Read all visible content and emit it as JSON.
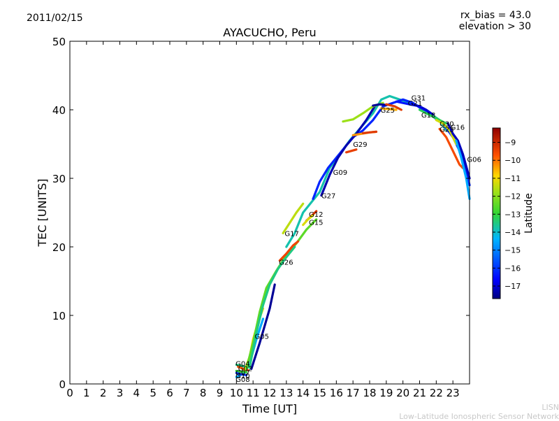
{
  "header": {
    "date": "2011/02/15",
    "rx_bias": "rx_bias = 43.0",
    "elevation": "elevation > 30"
  },
  "credit": {
    "line1": "LISN",
    "line2": "Low-Latitude Ionospheric Sensor Network"
  },
  "colorbar": {
    "label": "Latitude",
    "min": -17.7,
    "max": -8.2,
    "ticks": [
      -9,
      -10,
      -11,
      -12,
      -13,
      -14,
      -15,
      -16,
      -17
    ],
    "tick_labels": [
      "−9",
      "−10",
      "−11",
      "−12",
      "−13",
      "−14",
      "−15",
      "−16",
      "−17"
    ],
    "colormap": "jet"
  },
  "chart_data": {
    "type": "line",
    "title": "AYACUCHO, Peru",
    "xlabel": "Time [UT]",
    "ylabel": "TEC [UNITS]",
    "xlim": [
      0,
      24
    ],
    "ylim": [
      0,
      50
    ],
    "xticks": [
      0,
      1,
      2,
      3,
      4,
      5,
      6,
      7,
      8,
      9,
      10,
      11,
      12,
      13,
      14,
      15,
      16,
      17,
      18,
      19,
      20,
      21,
      22,
      23
    ],
    "yticks": [
      0,
      10,
      20,
      30,
      40,
      50
    ],
    "grid": false,
    "color_by": "Latitude",
    "series": [
      {
        "name": "G08",
        "lat": -14.5,
        "points": [
          [
            10.0,
            1.0
          ],
          [
            10.4,
            1.5
          ],
          [
            10.8,
            3.0
          ],
          [
            11.2,
            6.5
          ],
          [
            11.6,
            9.5
          ]
        ]
      },
      {
        "name": "G04",
        "lat": -13.5,
        "points": [
          [
            10.0,
            2.8
          ],
          [
            10.4,
            2.6
          ],
          [
            10.8,
            2.4
          ]
        ]
      },
      {
        "name": "G02",
        "lat": -9.8,
        "points": [
          [
            10.1,
            2.5
          ],
          [
            10.4,
            2.2
          ],
          [
            10.7,
            2.0
          ]
        ]
      },
      {
        "name": "G07",
        "lat": -13.0,
        "points": [
          [
            10.0,
            1.9
          ],
          [
            10.3,
            1.8
          ],
          [
            10.6,
            1.7
          ]
        ]
      },
      {
        "name": "G10",
        "lat": -16.0,
        "points": [
          [
            10.0,
            1.6
          ],
          [
            10.3,
            1.4
          ],
          [
            10.6,
            1.3
          ]
        ]
      },
      {
        "name": "G05",
        "lat": -11.0,
        "points": [
          [
            10.5,
            2.0
          ],
          [
            10.8,
            4.0
          ],
          [
            11.0,
            6.5
          ],
          [
            11.3,
            9.0
          ],
          [
            11.6,
            11.0
          ]
        ]
      },
      {
        "name": "",
        "lat": -12.5,
        "points": [
          [
            10.6,
            2.2
          ],
          [
            11.0,
            6.0
          ],
          [
            11.4,
            10.5
          ],
          [
            11.8,
            14.0
          ],
          [
            12.4,
            16.5
          ],
          [
            13.0,
            18.8
          ],
          [
            13.6,
            20.5
          ],
          [
            14.2,
            22.5
          ],
          [
            14.8,
            24.0
          ]
        ]
      },
      {
        "name": "",
        "lat": -13.5,
        "points": [
          [
            10.8,
            2.5
          ],
          [
            11.2,
            7.5
          ],
          [
            11.6,
            11.5
          ],
          [
            12.0,
            14.5
          ],
          [
            12.5,
            16.8
          ],
          [
            13.0,
            18.5
          ],
          [
            13.5,
            20.0
          ]
        ]
      },
      {
        "name": "",
        "lat": -17.5,
        "points": [
          [
            10.9,
            2.2
          ],
          [
            11.4,
            6.0
          ],
          [
            12.0,
            11.0
          ],
          [
            12.3,
            14.5
          ]
        ]
      },
      {
        "name": "G26",
        "lat": -9.5,
        "points": [
          [
            12.6,
            18.0
          ],
          [
            13.0,
            19.0
          ],
          [
            13.4,
            20.2
          ],
          [
            13.7,
            20.8
          ]
        ]
      },
      {
        "name": "G17",
        "lat": -11.5,
        "points": [
          [
            12.8,
            22.0
          ],
          [
            13.2,
            23.5
          ],
          [
            13.6,
            25.0
          ],
          [
            14.0,
            26.3
          ]
        ]
      },
      {
        "name": "",
        "lat": -13.8,
        "points": [
          [
            13.0,
            20.0
          ],
          [
            13.5,
            22.0
          ],
          [
            14.0,
            25.0
          ],
          [
            14.5,
            26.5
          ],
          [
            15.0,
            28.0
          ],
          [
            15.6,
            31.5
          ],
          [
            16.2,
            33.5
          ],
          [
            16.8,
            35.5
          ],
          [
            17.5,
            37.5
          ],
          [
            18.2,
            39.5
          ],
          [
            18.7,
            41.5
          ],
          [
            19.2,
            42.0
          ],
          [
            19.8,
            41.5
          ],
          [
            20.4,
            41.0
          ],
          [
            21.0,
            40.5
          ],
          [
            21.6,
            39.5
          ],
          [
            22.2,
            38.5
          ],
          [
            22.6,
            37.0
          ]
        ]
      },
      {
        "name": "G12",
        "lat": -9.2,
        "points": [
          [
            14.2,
            23.8
          ],
          [
            14.5,
            24.5
          ],
          [
            14.8,
            25.2
          ]
        ]
      },
      {
        "name": "G15",
        "lat": -11.2,
        "points": [
          [
            14.0,
            23.2
          ],
          [
            14.3,
            24.0
          ],
          [
            14.6,
            24.6
          ]
        ]
      },
      {
        "name": "G27",
        "lat": -16.2,
        "points": [
          [
            14.6,
            27.0
          ],
          [
            15.0,
            29.5
          ],
          [
            15.5,
            31.5
          ],
          [
            16.0,
            33.0
          ],
          [
            16.5,
            34.5
          ],
          [
            17.0,
            36.0
          ],
          [
            17.6,
            37.0
          ],
          [
            18.2,
            38.5
          ],
          [
            18.8,
            40.5
          ],
          [
            19.4,
            41.0
          ],
          [
            20.0,
            41.5
          ],
          [
            20.6,
            41.0
          ],
          [
            21.2,
            40.0
          ],
          [
            21.8,
            39.0
          ],
          [
            22.4,
            38.0
          ],
          [
            23.0,
            36.0
          ],
          [
            23.6,
            33.0
          ],
          [
            24.0,
            29.0
          ]
        ]
      },
      {
        "name": "G09",
        "lat": -17.3,
        "points": [
          [
            15.1,
            27.5
          ],
          [
            15.6,
            30.5
          ],
          [
            16.1,
            33.0
          ],
          [
            16.6,
            34.8
          ],
          [
            17.2,
            36.5
          ],
          [
            17.8,
            38.5
          ],
          [
            18.3,
            40.5
          ]
        ]
      },
      {
        "name": "G29",
        "lat": -9.4,
        "points": [
          [
            16.6,
            33.8
          ],
          [
            16.9,
            34.0
          ],
          [
            17.2,
            34.2
          ]
        ]
      },
      {
        "name": "",
        "lat": -11.8,
        "points": [
          [
            16.4,
            38.3
          ],
          [
            17.0,
            38.6
          ],
          [
            17.6,
            39.5
          ],
          [
            18.2,
            40.5
          ],
          [
            18.8,
            41.0
          ]
        ]
      },
      {
        "name": "",
        "lat": -10.3,
        "points": [
          [
            17.0,
            36.3
          ],
          [
            17.5,
            36.5
          ],
          [
            18.0,
            36.7
          ],
          [
            18.4,
            36.8
          ]
        ]
      },
      {
        "name": "",
        "lat": -9.3,
        "points": [
          [
            17.6,
            36.6
          ],
          [
            18.0,
            36.7
          ],
          [
            18.4,
            36.8
          ]
        ]
      },
      {
        "name": "G25",
        "lat": -17.5,
        "points": [
          [
            18.2,
            40.6
          ],
          [
            18.6,
            40.8
          ],
          [
            19.0,
            40.7
          ]
        ]
      },
      {
        "name": "",
        "lat": -10.5,
        "points": [
          [
            18.7,
            40.2
          ],
          [
            19.2,
            40.1
          ],
          [
            19.6,
            40.0
          ]
        ]
      },
      {
        "name": "",
        "lat": -9.3,
        "points": [
          [
            19.0,
            40.8
          ],
          [
            19.5,
            40.5
          ],
          [
            19.9,
            40.0
          ]
        ]
      },
      {
        "name": "G21",
        "lat": -16.4,
        "points": [
          [
            19.6,
            41.2
          ],
          [
            20.0,
            41.0
          ],
          [
            20.4,
            40.8
          ],
          [
            20.8,
            40.6
          ]
        ]
      },
      {
        "name": "G31",
        "lat": -17.0,
        "points": [
          [
            20.6,
            40.8
          ],
          [
            21.0,
            40.5
          ],
          [
            21.4,
            40.0
          ],
          [
            21.8,
            39.3
          ]
        ]
      },
      {
        "name": "G18",
        "lat": -13.2,
        "points": [
          [
            21.0,
            40.0
          ],
          [
            21.4,
            39.5
          ],
          [
            21.8,
            39.0
          ],
          [
            22.2,
            38.5
          ],
          [
            22.6,
            38.0
          ]
        ]
      },
      {
        "name": "G30",
        "lat": -11.3,
        "points": [
          [
            22.0,
            38.5
          ],
          [
            22.4,
            38.0
          ],
          [
            22.8,
            37.0
          ],
          [
            23.2,
            35.0
          ]
        ]
      },
      {
        "name": "G23",
        "lat": -9.6,
        "points": [
          [
            22.2,
            37.2
          ],
          [
            22.6,
            36.0
          ],
          [
            23.0,
            34.0
          ],
          [
            23.4,
            32.0
          ],
          [
            23.6,
            31.5
          ]
        ]
      },
      {
        "name": "G16",
        "lat": -17.2,
        "points": [
          [
            22.7,
            38.0
          ],
          [
            23.0,
            36.5
          ],
          [
            23.3,
            35.5
          ],
          [
            23.6,
            33.5
          ],
          [
            24.0,
            30.0
          ]
        ]
      },
      {
        "name": "G06",
        "lat": -14.5,
        "points": [
          [
            23.2,
            35.5
          ],
          [
            23.5,
            33.0
          ],
          [
            23.8,
            30.0
          ],
          [
            24.0,
            27.0
          ]
        ]
      }
    ],
    "labels": [
      {
        "text": "G04",
        "x": 9.95,
        "y": 2.6
      },
      {
        "text": "G02",
        "x": 10.1,
        "y": 1.9
      },
      {
        "text": "G07",
        "x": 9.95,
        "y": 1.3
      },
      {
        "text": "G10",
        "x": 9.95,
        "y": 0.8
      },
      {
        "text": "G08",
        "x": 9.95,
        "y": 0.3
      },
      {
        "text": "G05",
        "x": 11.1,
        "y": 6.6
      },
      {
        "text": "G26",
        "x": 12.55,
        "y": 17.4
      },
      {
        "text": "G17",
        "x": 12.9,
        "y": 21.6
      },
      {
        "text": "G12",
        "x": 14.35,
        "y": 24.4
      },
      {
        "text": "G15",
        "x": 14.35,
        "y": 23.2
      },
      {
        "text": "G27",
        "x": 15.1,
        "y": 27.1
      },
      {
        "text": "G09",
        "x": 15.8,
        "y": 30.5
      },
      {
        "text": "G29",
        "x": 17.0,
        "y": 34.6
      },
      {
        "text": "G25",
        "x": 18.65,
        "y": 39.6
      },
      {
        "text": "G21",
        "x": 20.3,
        "y": 40.6
      },
      {
        "text": "G31",
        "x": 20.5,
        "y": 41.4
      },
      {
        "text": "G18",
        "x": 21.1,
        "y": 38.9
      },
      {
        "text": "G30",
        "x": 22.2,
        "y": 37.6
      },
      {
        "text": "G23",
        "x": 22.2,
        "y": 36.8
      },
      {
        "text": "G16",
        "x": 22.85,
        "y": 37.1
      },
      {
        "text": "G06",
        "x": 23.85,
        "y": 32.4
      }
    ]
  }
}
